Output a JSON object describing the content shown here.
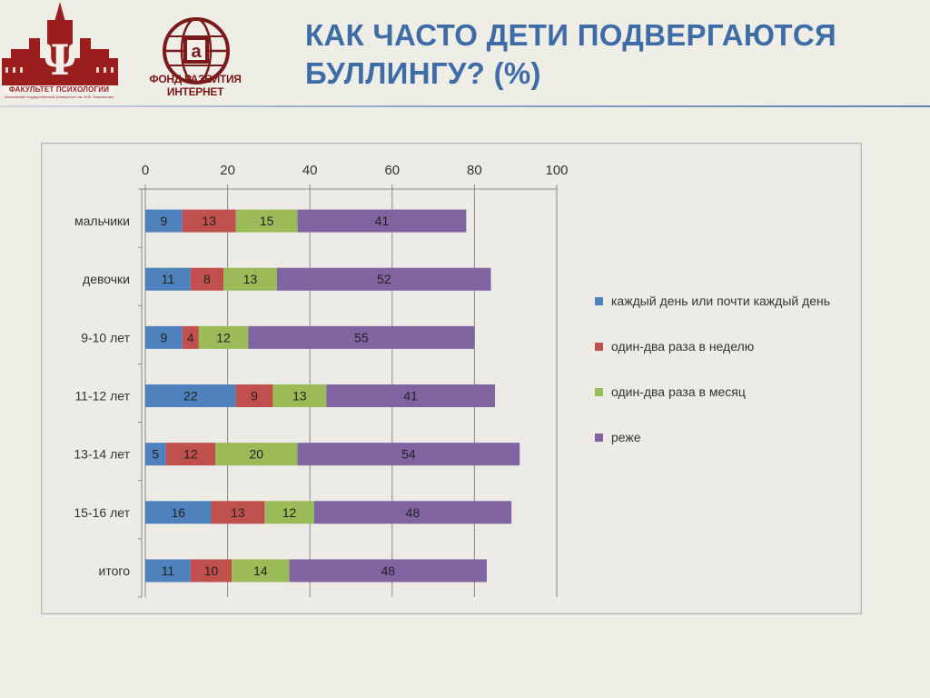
{
  "slide": {
    "title": "КАК ЧАСТО ДЕТИ ПОДВЕРГАЮТСЯ БУЛЛИНГУ? (%)"
  },
  "logos": {
    "left_caption": "ФАКУЛЬТЕТ ПСИХОЛОГИИ",
    "left_subcaption": "Московский государственный университет им. М.В. Ломоносова",
    "right_caption": "ФОНД РАЗВИТИЯ ИНТЕРНЕТ",
    "left_icon": "psychology-faculty-logo-icon",
    "right_icon": "internet-development-fund-logo-icon"
  },
  "colors": {
    "title": "#3d6ca6",
    "series": [
      "#4f81bd",
      "#c0504d",
      "#9bbb59",
      "#8064a2"
    ]
  },
  "chart_data": {
    "type": "bar",
    "orientation": "horizontal",
    "stacked": true,
    "categories": [
      "мальчики",
      "девочки",
      "9-10 лет",
      "11-12 лет",
      "13-14 лет",
      "15-16 лет",
      "итого"
    ],
    "series": [
      {
        "name": "каждый день или почти каждый день",
        "values": [
          9,
          11,
          9,
          22,
          5,
          16,
          11
        ]
      },
      {
        "name": "один-два раза в неделю",
        "values": [
          13,
          8,
          4,
          9,
          12,
          13,
          10
        ]
      },
      {
        "name": "один-два раза в месяц",
        "values": [
          15,
          13,
          12,
          13,
          20,
          12,
          14
        ]
      },
      {
        "name": "реже",
        "values": [
          41,
          52,
          55,
          41,
          54,
          48,
          48
        ]
      }
    ],
    "xlim": [
      0,
      100
    ],
    "xticks": [
      0,
      20,
      40,
      60,
      80,
      100
    ],
    "x_axis_position": "top",
    "grid": true,
    "legend_position": "right",
    "title": "",
    "xlabel": "",
    "ylabel": ""
  }
}
